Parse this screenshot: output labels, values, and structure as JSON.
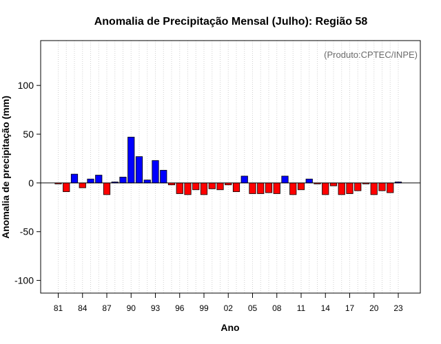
{
  "chart_data": {
    "type": "bar",
    "title": "Anomalia de Precipitação Mensal (Julho): Região 58",
    "credit": "(Produto:CPTEC/INPE)",
    "xlabel": "Ano",
    "ylabel": "Anomalia de precipitação (mm)",
    "ylim": [
      -113,
      146
    ],
    "yticks": [
      -100,
      -50,
      0,
      50,
      100
    ],
    "ytick_labels": [
      "-100",
      "-50",
      "0",
      "50",
      "100"
    ],
    "xtick_labels": [
      "81",
      "84",
      "87",
      "90",
      "93",
      "96",
      "99",
      "02",
      "05",
      "08",
      "11",
      "14",
      "17",
      "20",
      "23"
    ],
    "xtick_years": [
      1981,
      1984,
      1987,
      1990,
      1993,
      1996,
      1999,
      2002,
      2005,
      2008,
      2011,
      2014,
      2017,
      2020,
      2023
    ],
    "grid": "vertical dotted",
    "categories": [
      1981,
      1982,
      1983,
      1984,
      1985,
      1986,
      1987,
      1988,
      1989,
      1990,
      1991,
      1992,
      1993,
      1994,
      1995,
      1996,
      1997,
      1998,
      1999,
      2000,
      2001,
      2002,
      2003,
      2004,
      2005,
      2006,
      2007,
      2008,
      2009,
      2010,
      2011,
      2012,
      2013,
      2014,
      2015,
      2016,
      2017,
      2018,
      2019,
      2020,
      2021,
      2022,
      2023
    ],
    "values": [
      -1,
      -9,
      9,
      -5,
      4,
      8,
      -12,
      1,
      6,
      47,
      27,
      3,
      23,
      13,
      -2,
      -11,
      -12,
      -7,
      -12,
      -6,
      -7,
      -2,
      -9,
      7,
      -11,
      -11,
      -10,
      -11,
      7,
      -12,
      -7,
      4,
      -1,
      -12,
      -3,
      -12,
      -11,
      -8,
      -1,
      -12,
      -8,
      -10,
      1
    ],
    "colors": {
      "positive": "#0000ff",
      "negative": "#ff0000",
      "zero_line": "#000000",
      "grid": "#cfcfcf"
    }
  }
}
